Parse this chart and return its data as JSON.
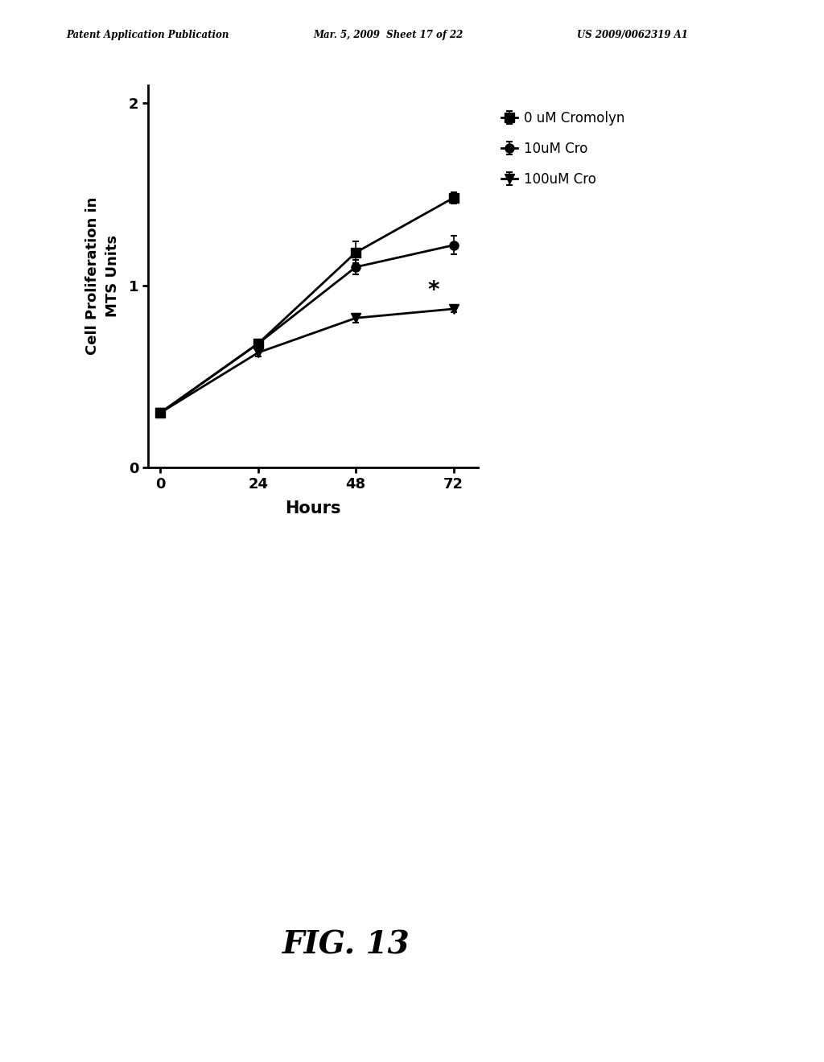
{
  "x": [
    0,
    24,
    48,
    72
  ],
  "series": [
    {
      "label": "0 uM Cromolyn",
      "y": [
        0.3,
        0.68,
        1.18,
        1.48
      ],
      "yerr": [
        0.01,
        0.02,
        0.06,
        0.03
      ],
      "marker": "s",
      "markersize": 8,
      "color": "#000000"
    },
    {
      "label": "10uM Cro",
      "y": [
        0.3,
        0.68,
        1.1,
        1.22
      ],
      "yerr": [
        0.01,
        0.02,
        0.04,
        0.05
      ],
      "marker": "o",
      "markersize": 8,
      "color": "#000000"
    },
    {
      "label": "100uM Cro",
      "y": [
        0.3,
        0.63,
        0.82,
        0.87
      ],
      "yerr": [
        0.01,
        0.02,
        0.025,
        0.02
      ],
      "marker": "v",
      "markersize": 8,
      "color": "#000000"
    }
  ],
  "xlabel": "Hours",
  "ylabel": "Cell Proliferation in\nMTS Units",
  "xlim": [
    -3,
    78
  ],
  "ylim": [
    0,
    2.1
  ],
  "xticks": [
    0,
    24,
    48,
    72
  ],
  "yticks": [
    0,
    1,
    2
  ],
  "header_left": "Patent Application Publication",
  "header_mid": "Mar. 5, 2009  Sheet 17 of 22",
  "header_right": "US 2009/0062319 A1",
  "figure_label": "FIG. 13",
  "asterisk_x": 67,
  "asterisk_y": 0.97,
  "background_color": "#ffffff",
  "linewidth": 2.0
}
